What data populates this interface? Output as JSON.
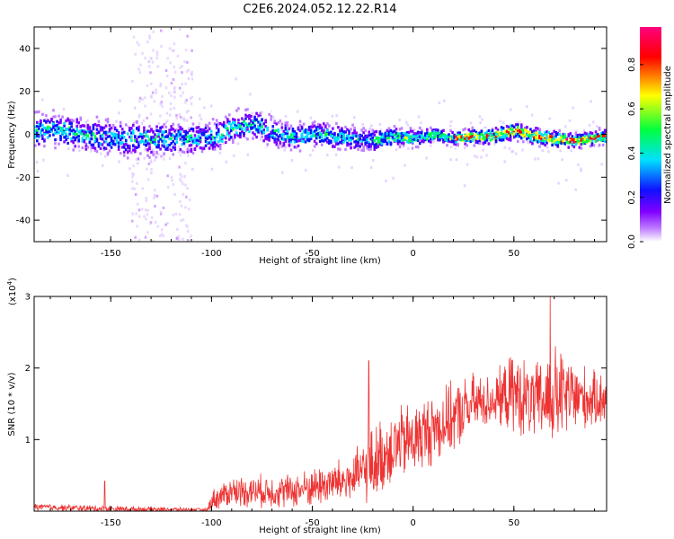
{
  "figure": {
    "title": "C2E6.2024.052.12.22.R14"
  },
  "chart_data": [
    {
      "type": "heatmap",
      "xlabel": "Height of straight line (km)",
      "ylabel": "Frequency (Hz)",
      "xlim": [
        -188,
        96
      ],
      "ylim": [
        -50,
        50
      ],
      "xticks": [
        -150,
        -100,
        -50,
        0,
        50
      ],
      "yticks": [
        -40,
        -20,
        0,
        20,
        40
      ],
      "colorbar": {
        "label": "Normalized spectral amplitude",
        "range": [
          0,
          0.97
        ],
        "ticks": [
          0.0,
          0.2,
          0.4,
          0.6,
          0.8
        ],
        "colormap": [
          "#ffffff",
          "#c080ff",
          "#8000ff",
          "#1010ff",
          "#00e0ff",
          "#00ff40",
          "#ffff00",
          "#ff0000",
          "#ff0080"
        ]
      },
      "band_center_hz": {
        "x": [
          -188,
          -170,
          -150,
          -130,
          -110,
          -95,
          -90,
          -80,
          -70,
          -60,
          -50,
          -40,
          -30,
          -20,
          -10,
          0,
          10,
          20,
          30,
          40,
          50,
          60,
          70,
          80,
          96
        ],
        "y": [
          2,
          1,
          -2,
          -2,
          -2,
          0,
          3,
          5,
          1,
          -1,
          0,
          -1,
          -2,
          -3,
          -1,
          -2,
          0,
          -2,
          -1,
          -1,
          2,
          -1,
          -2,
          -3,
          -1
        ]
      },
      "band_halfwidth_hz": {
        "x": [
          -188,
          -100,
          -50,
          0,
          20,
          50,
          96
        ],
        "y": [
          10,
          9,
          8,
          5,
          4,
          5,
          4
        ]
      },
      "scatter_band_x": [
        -140,
        -110
      ],
      "scatter_band_hz": [
        -50,
        50
      ]
    },
    {
      "type": "line",
      "xlabel": "Height of straight line (km)",
      "ylabel": "SNR (10 * v/v)",
      "multiplier": "(x10",
      "multiplier_exp": "4",
      "multiplier_close": ")",
      "xlim": [
        -188,
        96
      ],
      "ylim": [
        0,
        3
      ],
      "xticks": [
        -150,
        -100,
        -50,
        0,
        50
      ],
      "yticks": [
        1,
        2,
        3
      ],
      "color": "#ee3333",
      "envelope_x": [
        -188,
        -150,
        -102,
        -100,
        -90,
        -60,
        -30,
        -20,
        -10,
        0,
        20,
        30,
        40,
        50,
        60,
        70,
        80,
        90,
        96
      ],
      "envelope_mean": [
        0.06,
        0.03,
        0.02,
        0.15,
        0.28,
        0.28,
        0.45,
        0.65,
        0.9,
        1.0,
        1.3,
        1.5,
        1.55,
        1.65,
        1.5,
        1.6,
        1.6,
        1.55,
        1.6
      ],
      "envelope_spread": [
        0.05,
        0.05,
        0.02,
        0.15,
        0.22,
        0.25,
        0.35,
        0.55,
        0.55,
        0.55,
        0.5,
        0.45,
        0.35,
        0.6,
        0.55,
        0.75,
        0.55,
        0.4,
        0.4
      ],
      "peaks": [
        {
          "x": -153,
          "y": 0.42
        },
        {
          "x": -22,
          "y": 2.1
        },
        {
          "x": 68,
          "y": 3.0
        }
      ]
    }
  ]
}
